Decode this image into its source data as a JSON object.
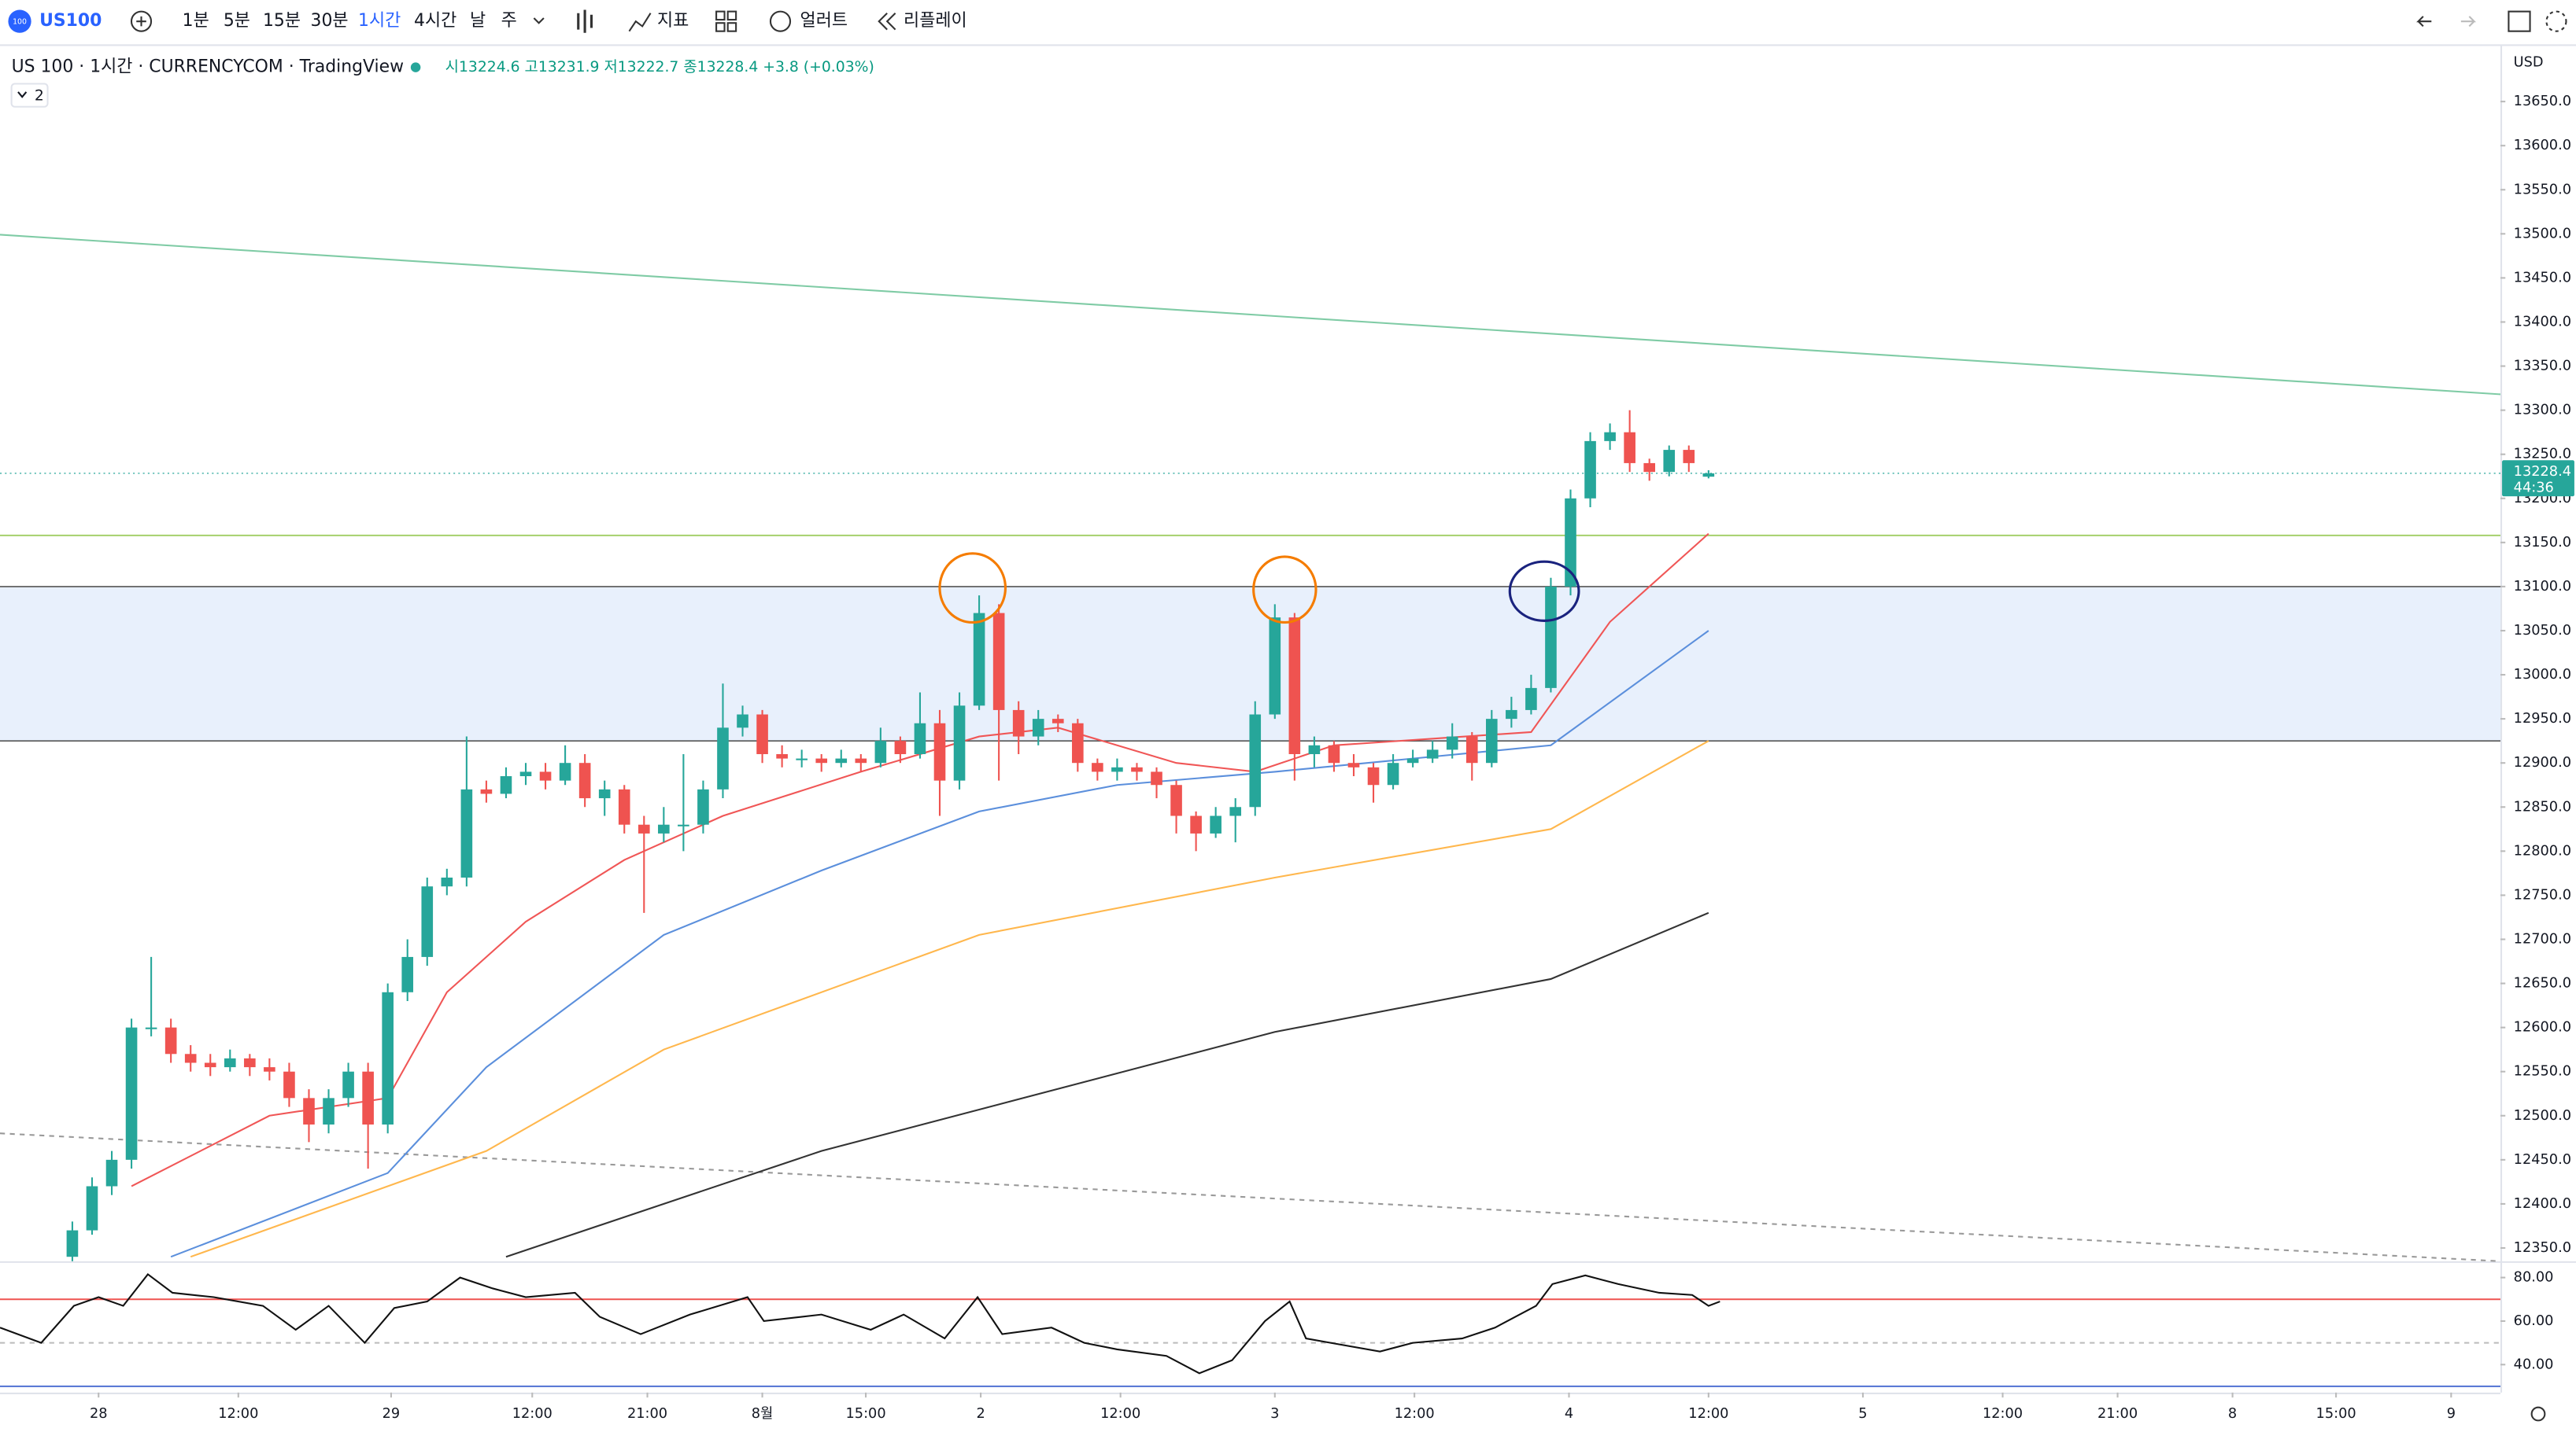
{
  "toolbar": {
    "logo": "100",
    "symbol": "US100",
    "intervals": [
      "1분",
      "5분",
      "15분",
      "30분",
      "1시간",
      "4시간",
      "날",
      "주"
    ],
    "active_interval": 4,
    "indicators": "지표",
    "alert": "얼러트",
    "replay": "리플레이"
  },
  "header": {
    "title": "US 100 · 1시간 · CURRENCYCOM · TradingView",
    "ohlc": "시13224.6 고13231.9 저13222.7 종13228.4 +3.8 (+0.03%)",
    "indicator_count": "2"
  },
  "chart_data": [
    {
      "type": "candlestick",
      "currency": "USD",
      "up_color": "#26a69a",
      "down_color": "#ef5350",
      "xlim": [
        -3.67,
        123.17
      ],
      "ylim": [
        12335,
        13713
      ],
      "yticks": [
        {
          "value": 12350,
          "label": "12350.0"
        },
        {
          "value": 12400,
          "label": "12400.0"
        },
        {
          "value": 12450,
          "label": "12450.0"
        },
        {
          "value": 12500,
          "label": "12500.0"
        },
        {
          "value": 12550,
          "label": "12550.0"
        },
        {
          "value": 12600,
          "label": "12600.0"
        },
        {
          "value": 12650,
          "label": "12650.0"
        },
        {
          "value": 12700,
          "label": "12700.0"
        },
        {
          "value": 12750,
          "label": "12750.0"
        },
        {
          "value": 12800,
          "label": "12800.0"
        },
        {
          "value": 12850,
          "label": "12850.0"
        },
        {
          "value": 12900,
          "label": "12900.0"
        },
        {
          "value": 12950,
          "label": "12950.0"
        },
        {
          "value": 13000,
          "label": "13000.0"
        },
        {
          "value": 13050,
          "label": "13050.0"
        },
        {
          "value": 13100,
          "label": "13100.0"
        },
        {
          "value": 13150,
          "label": "13150.0"
        },
        {
          "value": 13200,
          "label": "13200.0"
        },
        {
          "value": 13250,
          "label": "13250.0"
        },
        {
          "value": 13300,
          "label": "13300.0"
        },
        {
          "value": 13350,
          "label": "13350.0"
        },
        {
          "value": 13400,
          "label": "13400.0"
        },
        {
          "value": 13450,
          "label": "13450.0"
        },
        {
          "value": 13500,
          "label": "13500.0"
        },
        {
          "value": 13550,
          "label": "13550.0"
        },
        {
          "value": 13600,
          "label": "13600.0"
        },
        {
          "value": 13650,
          "label": "13650.0"
        }
      ],
      "last_price": 13228.4,
      "countdown": "44:36",
      "ohlc": [
        [
          12340,
          12380,
          12335,
          12370
        ],
        [
          12370,
          12430,
          12365,
          12420
        ],
        [
          12420,
          12460,
          12410,
          12450
        ],
        [
          12450,
          12610,
          12440,
          12600
        ],
        [
          12600,
          12680,
          12590,
          12600
        ],
        [
          12600,
          12610,
          12560,
          12570
        ],
        [
          12570,
          12580,
          12550,
          12560
        ],
        [
          12560,
          12570,
          12545,
          12555
        ],
        [
          12555,
          12575,
          12550,
          12565
        ],
        [
          12565,
          12570,
          12545,
          12555
        ],
        [
          12555,
          12565,
          12540,
          12550
        ],
        [
          12550,
          12560,
          12510,
          12520
        ],
        [
          12520,
          12530,
          12470,
          12490
        ],
        [
          12490,
          12530,
          12480,
          12520
        ],
        [
          12520,
          12560,
          12510,
          12550
        ],
        [
          12550,
          12560,
          12440,
          12490
        ],
        [
          12490,
          12650,
          12480,
          12640
        ],
        [
          12640,
          12700,
          12630,
          12680
        ],
        [
          12680,
          12770,
          12670,
          12760
        ],
        [
          12760,
          12780,
          12750,
          12770
        ],
        [
          12770,
          12930,
          12760,
          12870
        ],
        [
          12870,
          12880,
          12855,
          12865
        ],
        [
          12865,
          12895,
          12860,
          12885
        ],
        [
          12885,
          12900,
          12875,
          12890
        ],
        [
          12890,
          12900,
          12870,
          12880
        ],
        [
          12880,
          12920,
          12875,
          12900
        ],
        [
          12900,
          12910,
          12850,
          12860
        ],
        [
          12860,
          12880,
          12840,
          12870
        ],
        [
          12870,
          12875,
          12820,
          12830
        ],
        [
          12830,
          12840,
          12730,
          12820
        ],
        [
          12820,
          12850,
          12810,
          12830
        ],
        [
          12830,
          12910,
          12800,
          12830
        ],
        [
          12830,
          12880,
          12820,
          12870
        ],
        [
          12870,
          12990,
          12860,
          12940
        ],
        [
          12940,
          12965,
          12930,
          12955
        ],
        [
          12955,
          12960,
          12900,
          12910
        ],
        [
          12910,
          12920,
          12895,
          12905
        ],
        [
          12905,
          12915,
          12895,
          12905
        ],
        [
          12905,
          12910,
          12890,
          12900
        ],
        [
          12900,
          12915,
          12895,
          12905
        ],
        [
          12905,
          12910,
          12890,
          12900
        ],
        [
          12900,
          12940,
          12895,
          12925
        ],
        [
          12925,
          12930,
          12900,
          12910
        ],
        [
          12910,
          12980,
          12905,
          12945
        ],
        [
          12945,
          12960,
          12840,
          12880
        ],
        [
          12880,
          12980,
          12870,
          12965
        ],
        [
          12965,
          13090,
          12960,
          13070
        ],
        [
          13070,
          13080,
          12880,
          12960
        ],
        [
          12960,
          12970,
          12910,
          12930
        ],
        [
          12930,
          12960,
          12920,
          12950
        ],
        [
          12950,
          12955,
          12935,
          12945
        ],
        [
          12945,
          12950,
          12890,
          12900
        ],
        [
          12900,
          12905,
          12880,
          12890
        ],
        [
          12890,
          12905,
          12880,
          12895
        ],
        [
          12895,
          12900,
          12880,
          12890
        ],
        [
          12890,
          12895,
          12860,
          12875
        ],
        [
          12875,
          12880,
          12820,
          12840
        ],
        [
          12840,
          12845,
          12800,
          12820
        ],
        [
          12820,
          12850,
          12815,
          12840
        ],
        [
          12840,
          12860,
          12810,
          12850
        ],
        [
          12850,
          12970,
          12840,
          12955
        ],
        [
          12955,
          13080,
          12950,
          13065
        ],
        [
          13065,
          13070,
          12880,
          12910
        ],
        [
          12910,
          12930,
          12895,
          12920
        ],
        [
          12920,
          12925,
          12890,
          12900
        ],
        [
          12900,
          12910,
          12885,
          12895
        ],
        [
          12895,
          12900,
          12855,
          12875
        ],
        [
          12875,
          12910,
          12870,
          12900
        ],
        [
          12900,
          12915,
          12895,
          12905
        ],
        [
          12905,
          12925,
          12900,
          12915
        ],
        [
          12915,
          12945,
          12905,
          12930
        ],
        [
          12930,
          12935,
          12880,
          12900
        ],
        [
          12900,
          12960,
          12895,
          12950
        ],
        [
          12950,
          12975,
          12940,
          12960
        ],
        [
          12960,
          13000,
          12955,
          12985
        ],
        [
          12985,
          13110,
          12980,
          13100
        ],
        [
          13100,
          13210,
          13090,
          13200
        ],
        [
          13200,
          13275,
          13190,
          13265
        ],
        [
          13265,
          13285,
          13255,
          13275
        ],
        [
          13275,
          13300,
          13230,
          13240
        ],
        [
          13240,
          13245,
          13220,
          13230
        ],
        [
          13230,
          13260,
          13225,
          13255
        ],
        [
          13255,
          13260,
          13230,
          13240
        ],
        [
          13224.6,
          13231.9,
          13222.7,
          13228.4
        ]
      ],
      "moving_averages": [
        {
          "color": "#f05656",
          "x": [
            3,
            10,
            16,
            19,
            23,
            28,
            33,
            40,
            46,
            50,
            56,
            60,
            64,
            74,
            78,
            83
          ],
          "values": [
            12420,
            12500,
            12520,
            12640,
            12720,
            12790,
            12840,
            12890,
            12930,
            12940,
            12900,
            12890,
            12920,
            12935,
            13060,
            13160
          ]
        },
        {
          "color": "#5b8fdc",
          "x": [
            5,
            16,
            21,
            30,
            38,
            46,
            53,
            61,
            75,
            83
          ],
          "values": [
            12340,
            12435,
            12555,
            12705,
            12778,
            12845,
            12875,
            12890,
            12920,
            13050
          ]
        },
        {
          "color": "#ffb74d",
          "x": [
            6,
            21,
            30,
            46,
            61,
            75,
            83
          ],
          "values": [
            12340,
            12460,
            12575,
            12705,
            12770,
            12825,
            12925
          ]
        },
        {
          "color": "#333333",
          "x": [
            22,
            38,
            61,
            75,
            83
          ],
          "values": [
            12340,
            12460,
            12595,
            12655,
            12730
          ]
        }
      ],
      "zone": {
        "from": 12925,
        "to": 13100,
        "color": "#e8f0fc"
      },
      "horizontal_lines": [
        {
          "value": 13158,
          "color": "#a5d06b"
        }
      ],
      "trend_lines": [
        {
          "x": [
            -3.67,
            123.17
          ],
          "values": [
            13499,
            13318
          ],
          "color": "#7fcba5",
          "dash": false
        },
        {
          "x": [
            -3.67,
            123.17
          ],
          "values": [
            12480,
            12335
          ],
          "color": "#999999",
          "dash": true
        }
      ]
    },
    {
      "type": "line",
      "color": "#111111",
      "xlim": [
        -3.67,
        123.17
      ],
      "ylim": [
        29.4,
        86
      ],
      "yticks": [
        {
          "value": 40,
          "label": "40.00"
        },
        {
          "value": 60,
          "label": "60.00"
        },
        {
          "value": 80,
          "label": "80.00"
        }
      ],
      "levels": [
        {
          "value": 70,
          "color": "#ef5350",
          "dash": false
        },
        {
          "value": 50,
          "color": "#bbbbbb",
          "dash": true
        },
        {
          "value": 30,
          "color": "#5b7bd5",
          "dash": false
        }
      ],
      "x": [
        -3.67,
        -1.58,
        0.08,
        1.33,
        2.58,
        3.83,
        5.08,
        7.17,
        9.67,
        11.33,
        13,
        14.83,
        16.33,
        18,
        19.67,
        21.33,
        23,
        25.5,
        26.75,
        28.83,
        31.33,
        34.25,
        35.08,
        38,
        40.5,
        42.17,
        44.25,
        45.92,
        47.17,
        49.67,
        51.33,
        53,
        55.5,
        57.17,
        58.83,
        60.5,
        61.75,
        62.58,
        63.83,
        66.33,
        68,
        70.5,
        72.17,
        74.25,
        75.08,
        76.75,
        78.42,
        80.5,
        82.17,
        83,
        83.58
      ],
      "values": [
        57,
        50,
        67,
        71,
        67,
        81.5,
        73,
        71,
        67,
        56,
        67,
        50,
        66,
        69,
        80,
        75,
        71,
        73,
        62,
        54,
        63,
        71,
        60,
        63,
        56,
        63,
        52,
        71,
        54,
        57,
        50,
        47,
        44,
        36,
        42,
        60,
        69,
        52,
        50,
        46,
        50,
        52,
        57,
        67,
        77,
        81,
        77,
        73,
        72,
        67,
        69
      ],
      "xticks": [
        {
          "value": 1.33,
          "label": "28"
        },
        {
          "value": 8.42,
          "label": "12:00"
        },
        {
          "value": 16.17,
          "label": "29"
        },
        {
          "value": 23.33,
          "label": "12:00"
        },
        {
          "value": 29.17,
          "label": "21:00"
        },
        {
          "value": 35,
          "label": "8월"
        },
        {
          "value": 40.25,
          "label": "15:00"
        },
        {
          "value": 46.08,
          "label": "2"
        },
        {
          "value": 53.17,
          "label": "12:00"
        },
        {
          "value": 61,
          "label": "3"
        },
        {
          "value": 68.08,
          "label": "12:00"
        },
        {
          "value": 75.92,
          "label": "4"
        },
        {
          "value": 83,
          "label": "12:00"
        },
        {
          "value": 90.83,
          "label": "5"
        },
        {
          "value": 97.92,
          "label": "12:00"
        },
        {
          "value": 103.75,
          "label": "21:00"
        },
        {
          "value": 109.58,
          "label": "8"
        },
        {
          "value": 114.83,
          "label": "15:00"
        },
        {
          "value": 120.67,
          "label": "9"
        }
      ]
    }
  ]
}
